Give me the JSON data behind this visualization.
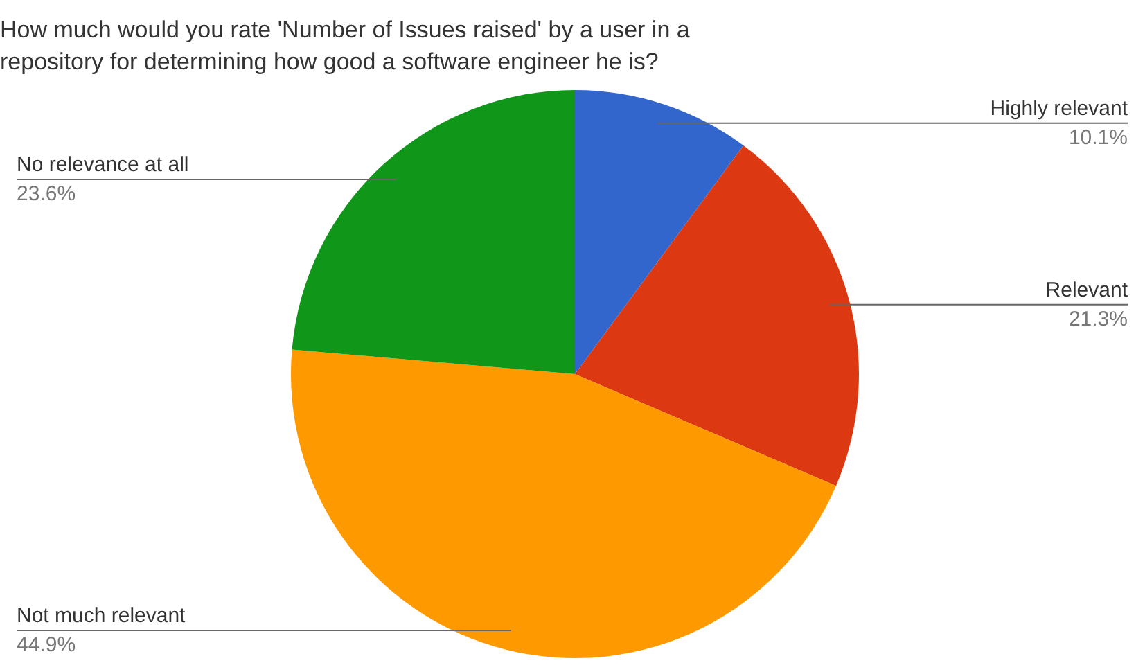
{
  "chart_data": {
    "type": "pie",
    "title": "How much would you rate 'Number of Issues raised' by a user in a repository for determining how good a software engineer he is?",
    "categories": [
      "Highly relevant",
      "Relevant",
      "Not much relevant",
      "No relevance at all"
    ],
    "values": [
      10.1,
      21.3,
      44.9,
      23.6
    ],
    "value_labels": [
      "10.1%",
      "21.3%",
      "44.9%",
      "23.6%"
    ],
    "colors": [
      "#3366cc",
      "#dc3912",
      "#ff9900",
      "#109618"
    ]
  }
}
